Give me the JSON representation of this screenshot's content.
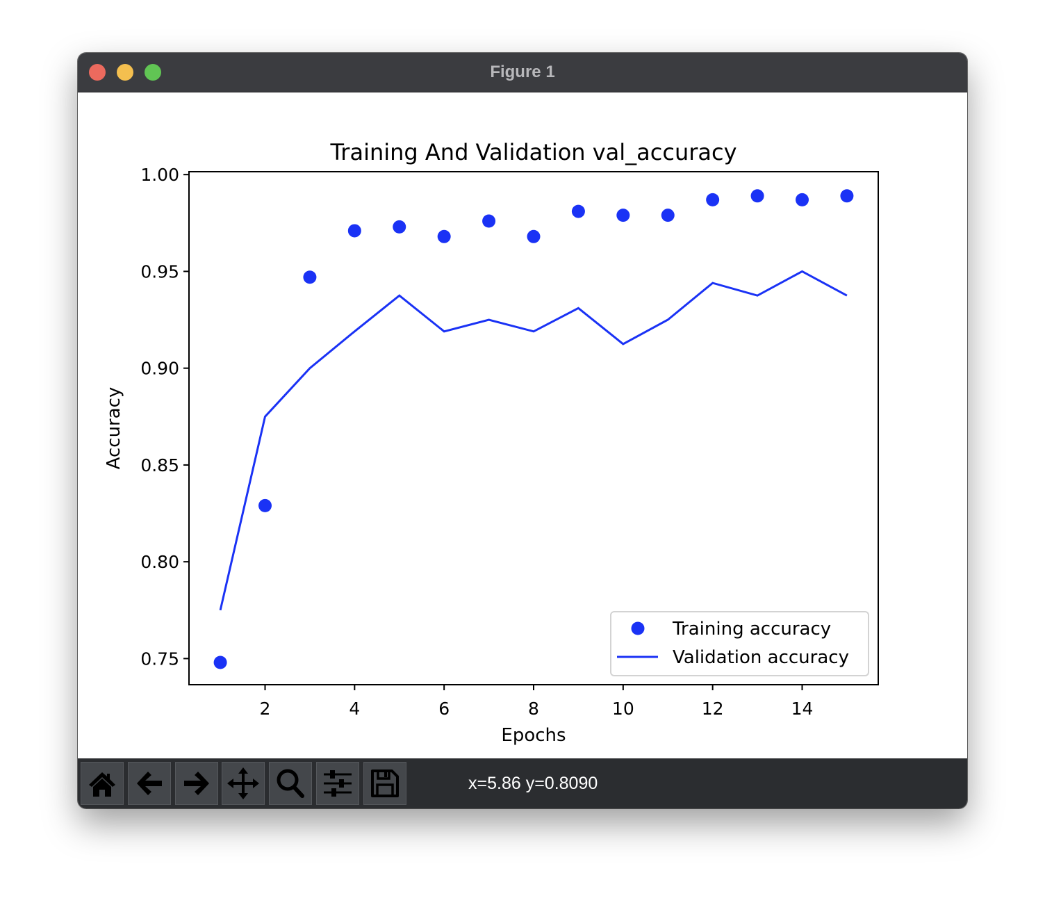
{
  "window": {
    "title": "Figure 1",
    "traffic_lights": [
      "close",
      "minimize",
      "maximize"
    ]
  },
  "toolbar": {
    "buttons": [
      {
        "name": "home",
        "icon": "home-icon"
      },
      {
        "name": "back",
        "icon": "arrow-left-icon"
      },
      {
        "name": "forward",
        "icon": "arrow-right-icon"
      },
      {
        "name": "pan",
        "icon": "move-icon"
      },
      {
        "name": "zoom",
        "icon": "magnifier-icon"
      },
      {
        "name": "configure-subplots",
        "icon": "sliders-icon"
      },
      {
        "name": "save",
        "icon": "floppy-disk-icon"
      }
    ],
    "coordinates": "x=5.86 y=0.8090"
  },
  "colors": {
    "series": "#1a32f5",
    "titlebar": "#3b3c40",
    "toolbar": "#2b2d30"
  },
  "chart_data": {
    "type": "line",
    "title": "Training And Validation val_accuracy",
    "xlabel": "Epochs",
    "ylabel": "Accuracy",
    "x": [
      1,
      2,
      3,
      4,
      5,
      6,
      7,
      8,
      9,
      10,
      11,
      12,
      13,
      14,
      15
    ],
    "series": [
      {
        "name": "Training accuracy",
        "style": "scatter-dots",
        "values": [
          0.748,
          0.829,
          0.947,
          0.971,
          0.973,
          0.968,
          0.976,
          0.968,
          0.981,
          0.979,
          0.979,
          0.987,
          0.989,
          0.987,
          0.989
        ]
      },
      {
        "name": "Validation accuracy",
        "style": "solid-line",
        "values": [
          0.775,
          0.875,
          0.9,
          0.919,
          0.9375,
          0.919,
          0.925,
          0.919,
          0.931,
          0.9125,
          0.925,
          0.944,
          0.9375,
          0.95,
          0.9375
        ]
      }
    ],
    "xticks": [
      "2",
      "4",
      "6",
      "8",
      "10",
      "12",
      "14"
    ],
    "yticks": [
      "0.75",
      "0.80",
      "0.85",
      "0.90",
      "0.95",
      "1.00"
    ],
    "xlim": [
      0.3,
      15.7
    ],
    "ylim": [
      0.7365,
      1.0015
    ],
    "grid": false,
    "legend_position": "lower right"
  }
}
